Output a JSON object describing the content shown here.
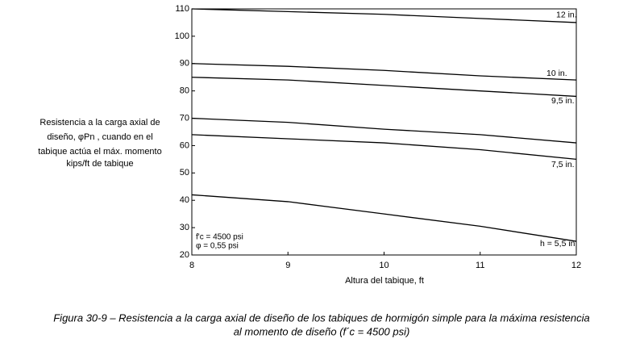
{
  "chart_data": {
    "type": "line",
    "x": [
      8,
      9,
      10,
      11,
      12
    ],
    "series": [
      {
        "name": "12 in.",
        "color": "#000000",
        "values": [
          110,
          109,
          108,
          106.5,
          105
        ]
      },
      {
        "name": "10 in.",
        "color": "#000000",
        "values": [
          90,
          89,
          87.5,
          85.5,
          84
        ]
      },
      {
        "name": "9,5 in.",
        "color": "#000000",
        "values": [
          85,
          84,
          82,
          80,
          78
        ]
      },
      {
        "name": null,
        "color": "#000000",
        "values": [
          70,
          68.5,
          66,
          64,
          61
        ]
      },
      {
        "name": "7,5 in.",
        "color": "#000000",
        "values": [
          64,
          62.5,
          61,
          58.5,
          55
        ]
      },
      {
        "name": "h = 5,5 in.",
        "color": "#000000",
        "values": [
          42,
          39.5,
          35,
          30.5,
          25
        ]
      }
    ],
    "xlim": [
      8,
      12
    ],
    "xticks": [
      8,
      9,
      10,
      11,
      12
    ],
    "ylim": [
      20,
      110
    ],
    "yticks": [
      20,
      30,
      40,
      50,
      60,
      70,
      80,
      90,
      100,
      110
    ],
    "xlabel": "Altura del tabique, ft",
    "ylabel": [
      "Resistencia a la carga axial de",
      "diseño,  φPn , cuando en el",
      "tabique actúa el máx. momento",
      "kips/ft de tabique"
    ],
    "annotations": [
      "f'c = 4500 psi",
      "φ = 0,55 psi"
    ],
    "caption": [
      "Figura 30-9 – Resistencia a la carga axial de diseño de los tabiques de hormigón simple para la máxima resistencia",
      "al momento de diseño (f´c = 4500 psi)"
    ]
  }
}
